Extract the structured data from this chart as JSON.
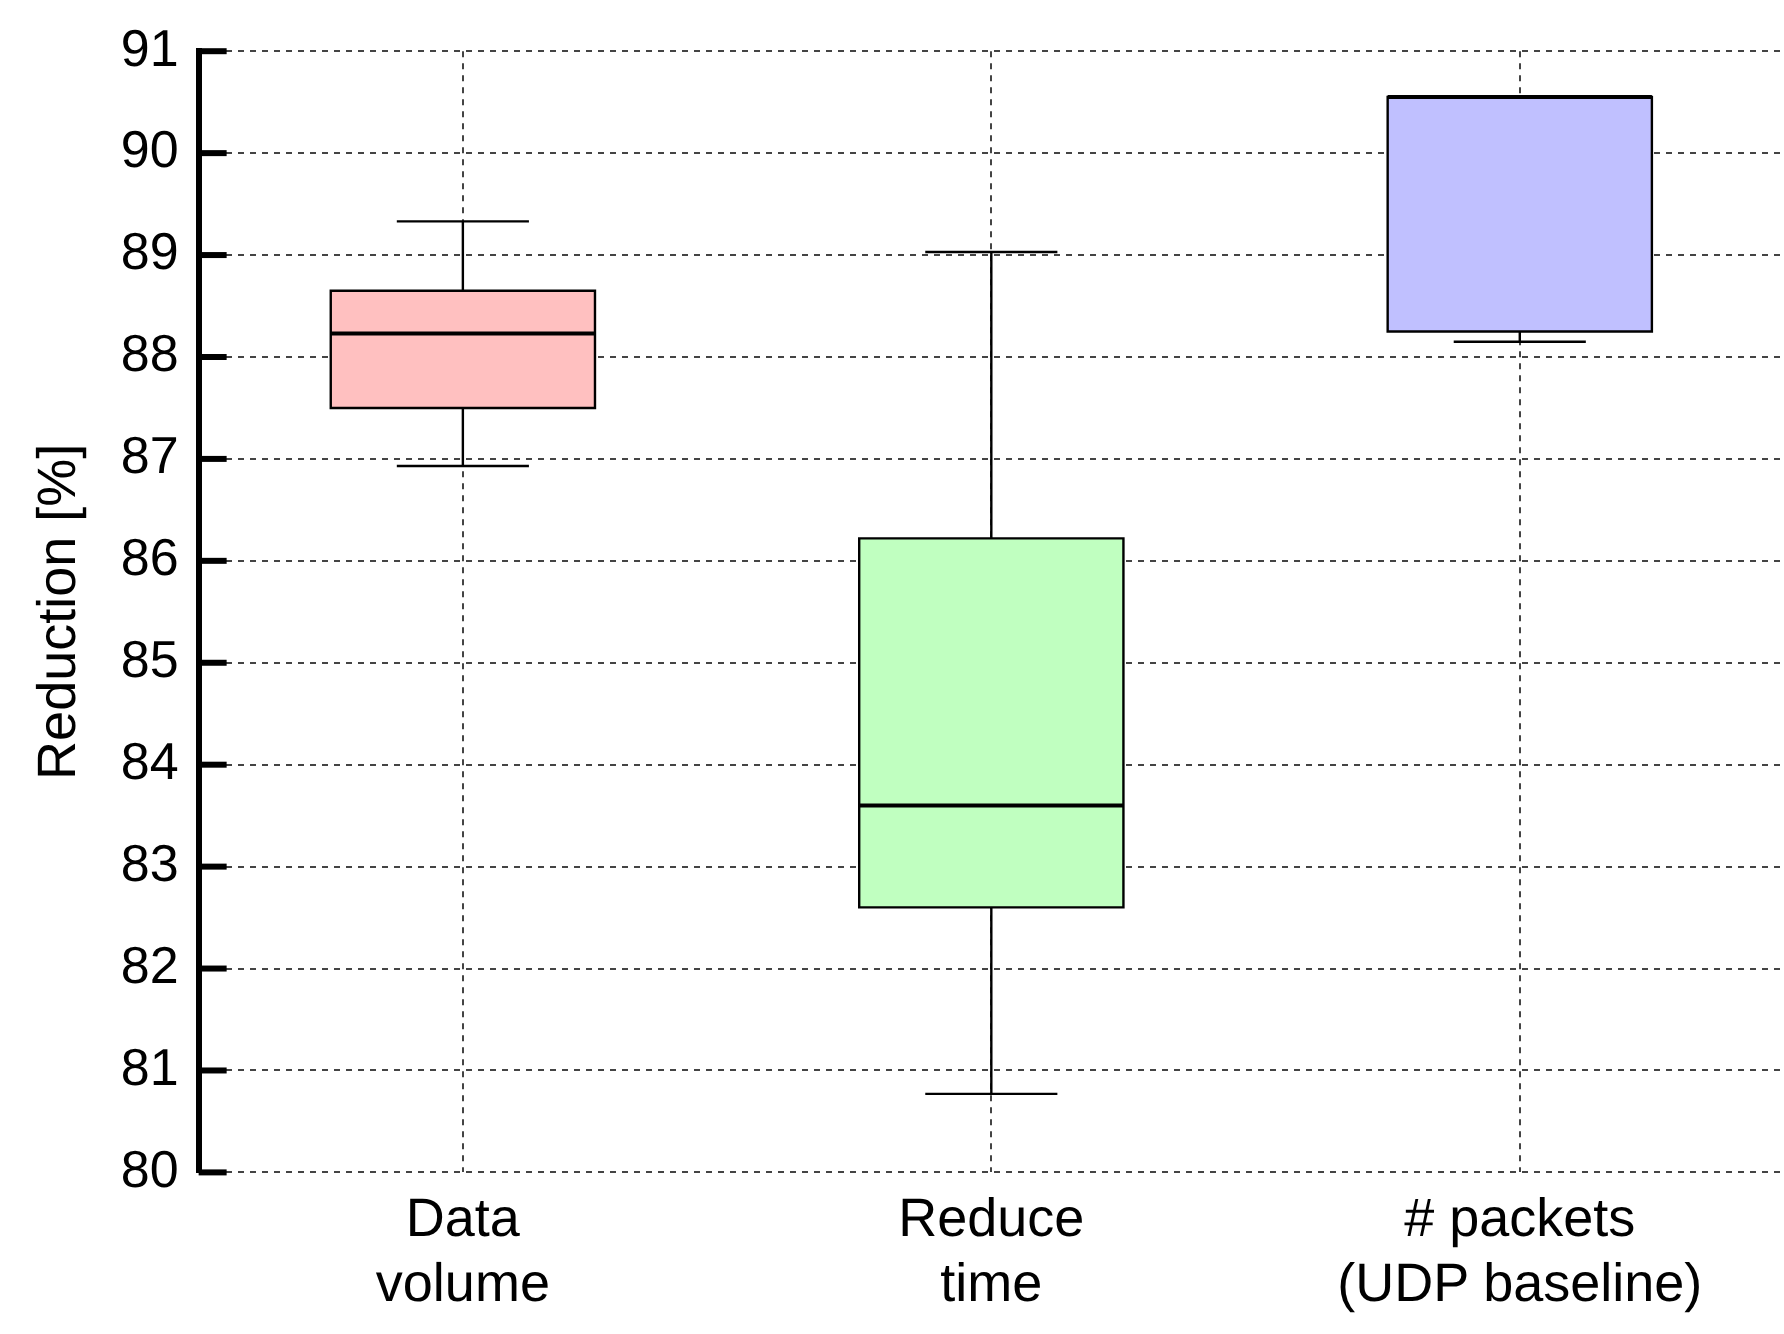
{
  "chart_data": {
    "type": "box",
    "ylabel": "Reduction [%]",
    "categories": [
      "Data\nvolume",
      "Reduce\ntime",
      "# packets\n(UDP baseline)"
    ],
    "boxes": [
      {
        "low": 86.93,
        "q1": 87.5,
        "median": 88.23,
        "q3": 88.65,
        "high": 89.33
      },
      {
        "low": 80.77,
        "q1": 82.6,
        "median": 83.6,
        "q3": 86.22,
        "high": 89.03
      },
      {
        "low": 88.15,
        "q1": 88.25,
        "median": 90.55,
        "q3": 90.55,
        "high": 90.55
      }
    ],
    "colors": [
      "#ffc0c0",
      "#c0ffc0",
      "#c0c0ff"
    ],
    "ylim": [
      80,
      91
    ],
    "yticks": [
      80,
      81,
      82,
      83,
      84,
      85,
      86,
      87,
      88,
      89,
      90,
      91
    ],
    "grid": true
  }
}
